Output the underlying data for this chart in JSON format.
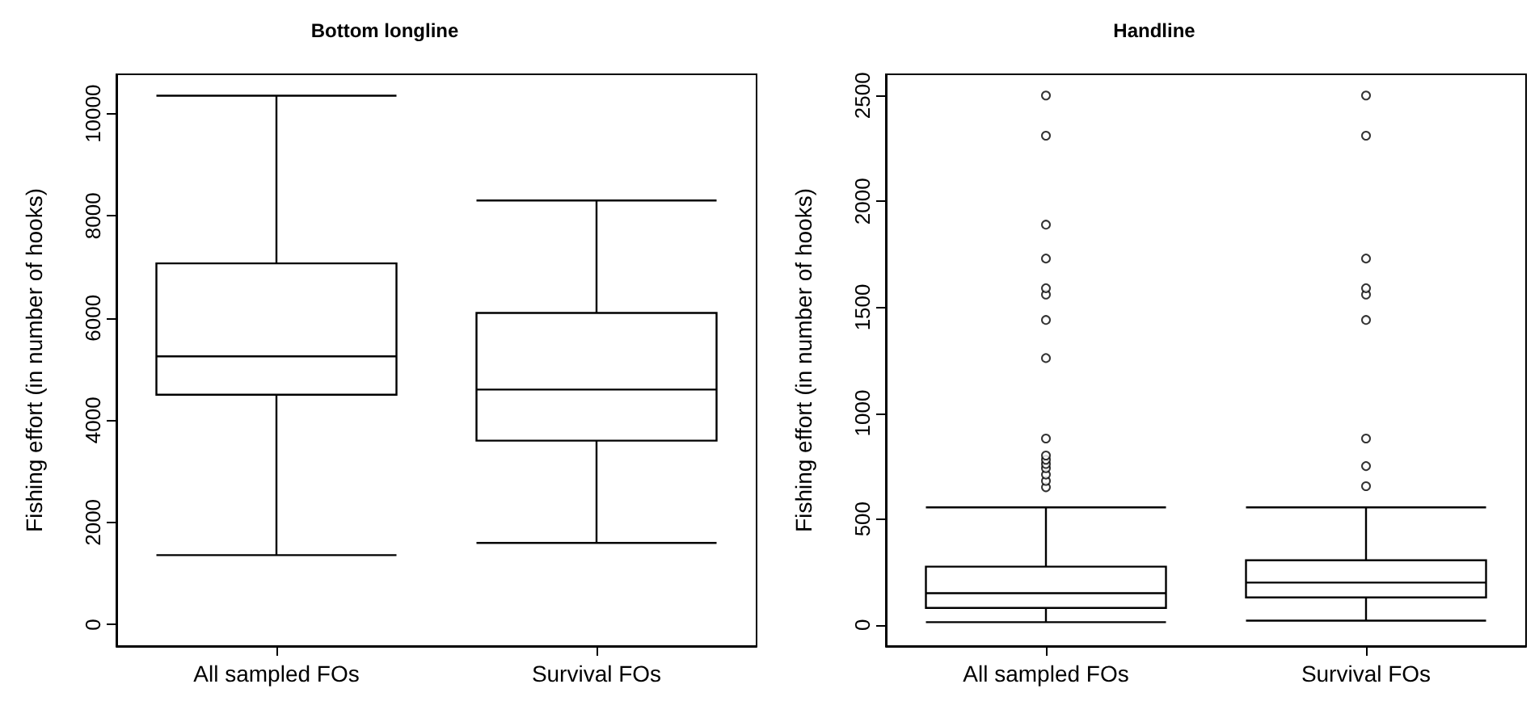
{
  "chart_data": [
    {
      "type": "box",
      "title": "Bottom longline",
      "ylabel": "Fishing effort (in number of hooks)",
      "categories": [
        "All sampled FOs",
        "Survival FOs"
      ],
      "ylim": [
        -420,
        10770
      ],
      "yticks": [
        0,
        2000,
        4000,
        6000,
        8000,
        10000
      ],
      "grid": false,
      "color": "#000000",
      "boxes": [
        {
          "low": 1360,
          "q1": 4500,
          "median": 5250,
          "q3": 7070,
          "high": 10350
        },
        {
          "low": 1600,
          "q1": 3600,
          "median": 4600,
          "q3": 6100,
          "high": 8300
        }
      ]
    },
    {
      "type": "box",
      "title": "Handline",
      "ylabel": "Fishing effort (in number of hooks)",
      "categories": [
        "All sampled FOs",
        "Survival FOs"
      ],
      "ylim": [
        -100,
        2600
      ],
      "yticks": [
        0,
        500,
        1000,
        1500,
        2000,
        2500
      ],
      "grid": false,
      "color": "#000000",
      "boxes": [
        {
          "low": 13,
          "q1": 80,
          "median": 150,
          "q3": 275,
          "high": 555,
          "outliers": [
            650,
            680,
            710,
            740,
            760,
            780,
            800,
            880,
            1260,
            1440,
            1560,
            1590,
            1730,
            1890,
            2310,
            2500
          ]
        },
        {
          "low": 20,
          "q1": 130,
          "median": 200,
          "q3": 305,
          "high": 555,
          "outliers": [
            655,
            750,
            880,
            1440,
            1560,
            1590,
            1730,
            2310,
            2500
          ]
        }
      ]
    }
  ]
}
